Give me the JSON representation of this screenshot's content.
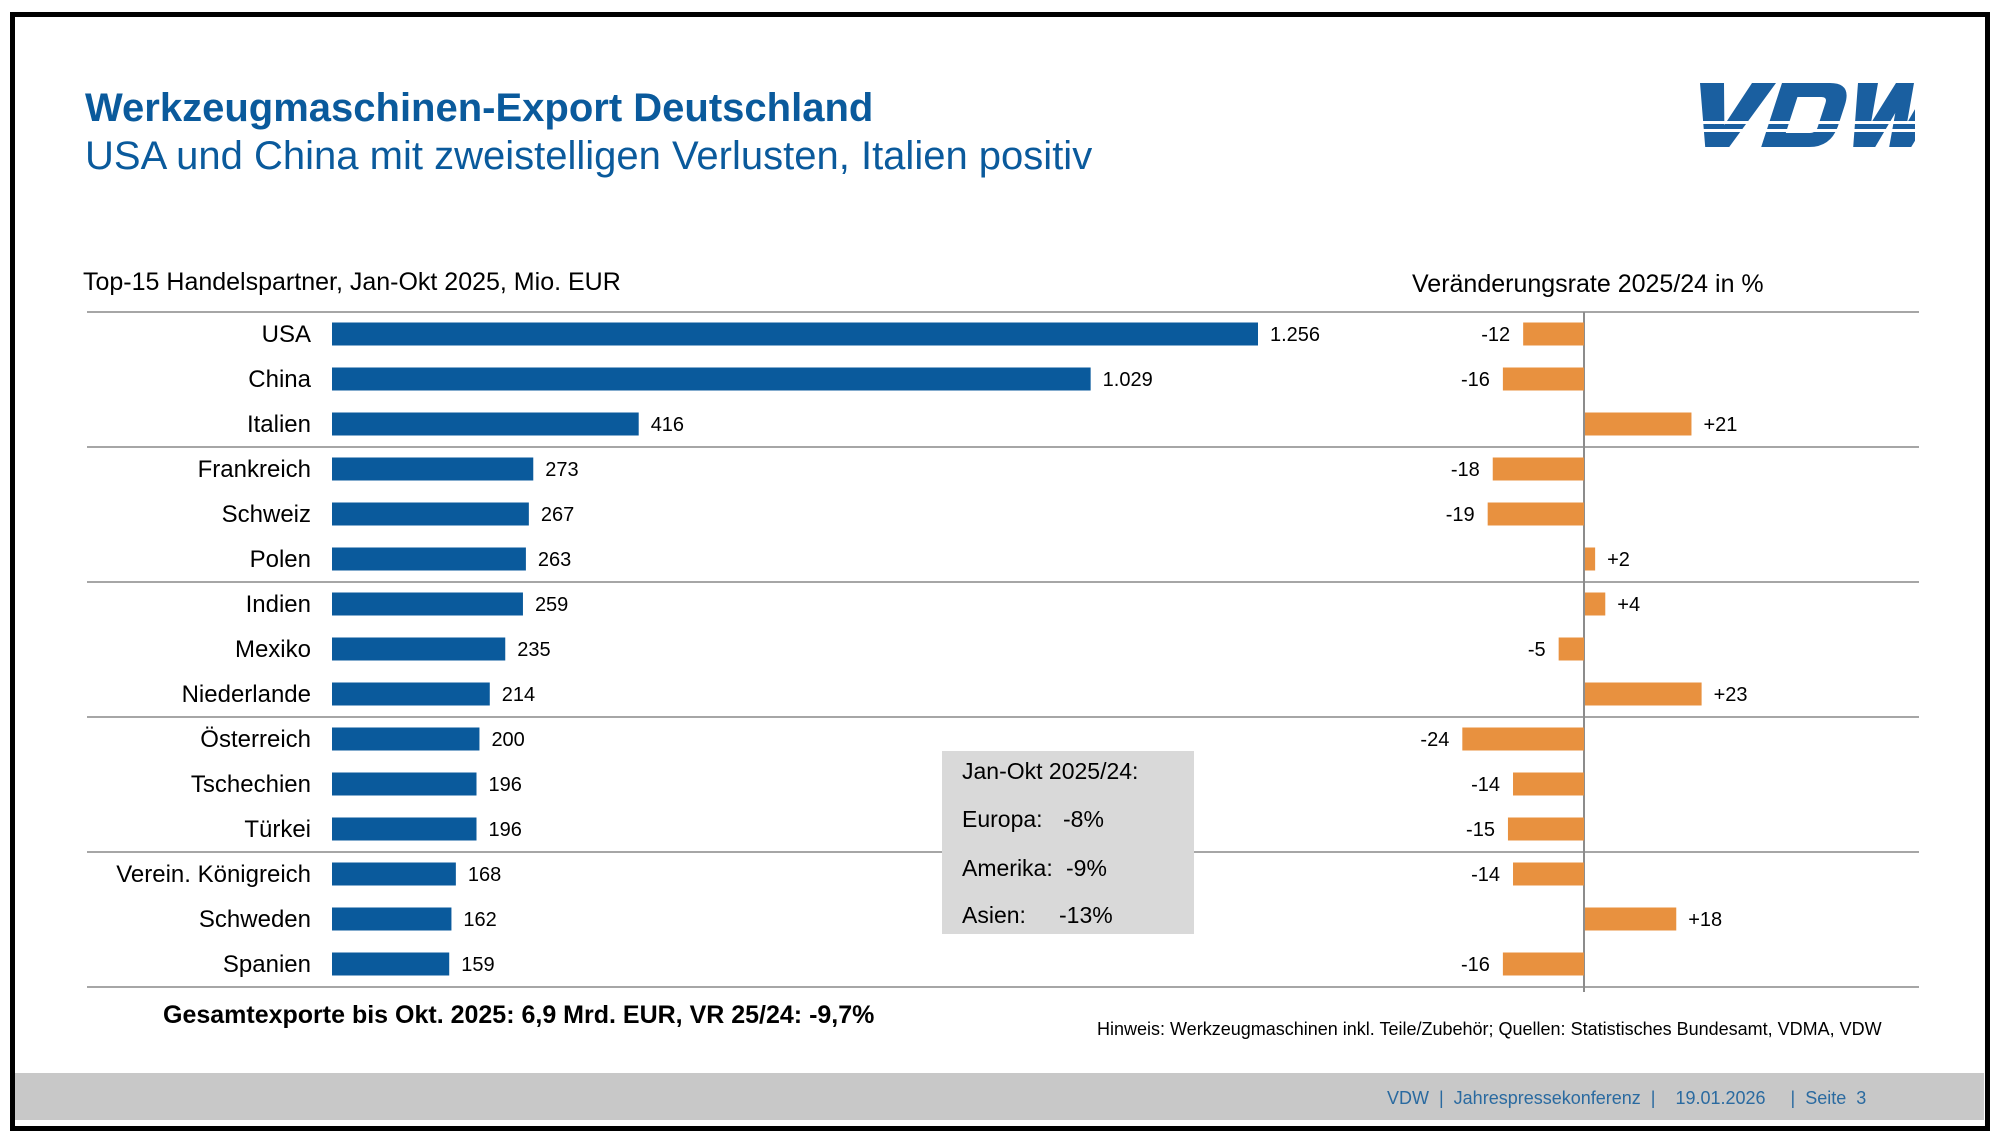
{
  "slide": {
    "title": "Werkzeugmaschinen-Export Deutschland",
    "subtitle": "USA und China mit zweistelligen Verlusten, Italien positiv",
    "logo_text": "VDW",
    "left_caption": "Top-15 Handelspartner, Jan-Okt 2025, Mio. EUR",
    "right_caption": "Veränderungsrate 2025/24 in %",
    "total": "Gesamtexporte bis Okt. 2025: 6,9 Mrd. EUR, VR 25/24: -9,7%",
    "note": "Hinweis: Werkzeugmaschinen inkl. Teile/Zubehör; Quellen: Statistisches Bundesamt, VDMA, VDW",
    "footer": "VDW  |  Jahrespressekonferenz  |    19.01.2026     |  Seite  3"
  },
  "info_box": {
    "heading": "Jan-Okt 2025/24:",
    "rows": [
      {
        "label": "Europa:",
        "value": "-8%"
      },
      {
        "label": "Amerika:",
        "value": "-9%"
      },
      {
        "label": "Asien:",
        "value": "-13%"
      }
    ]
  },
  "colors": {
    "title": "#0a5a9c",
    "export_bar": "#0a5a9c",
    "change_bar": "#e8913f",
    "info_box": "#d9d9d9",
    "footer_band": "#c8c8c8",
    "footer_text": "#2a6aa0",
    "separator": "#a6a6a6"
  },
  "chart_data": [
    {
      "type": "bar",
      "orientation": "horizontal",
      "title": "Top-15 Handelspartner, Jan-Okt 2025, Mio. EUR",
      "xlabel": "",
      "ylabel": "",
      "grid": false,
      "group_size": 3,
      "categories": [
        "USA",
        "China",
        "Italien",
        "Frankreich",
        "Schweiz",
        "Polen",
        "Indien",
        "Mexiko",
        "Niederlande",
        "Österreich",
        "Tschechien",
        "Türkei",
        "Verein. Königreich",
        "Schweden",
        "Spanien"
      ],
      "values": [
        1256,
        1029,
        416,
        273,
        267,
        263,
        259,
        235,
        214,
        200,
        196,
        196,
        168,
        162,
        159
      ],
      "value_labels": [
        "1.256",
        "1.029",
        "416",
        "273",
        "267",
        "263",
        "259",
        "235",
        "214",
        "200",
        "196",
        "196",
        "168",
        "162",
        "159"
      ],
      "xlim": [
        0,
        1256
      ]
    },
    {
      "type": "bar",
      "orientation": "horizontal",
      "title": "Veränderungsrate 2025/24 in %",
      "xlabel": "",
      "ylabel": "",
      "grid": false,
      "categories": [
        "USA",
        "China",
        "Italien",
        "Frankreich",
        "Schweiz",
        "Polen",
        "Indien",
        "Mexiko",
        "Niederlande",
        "Österreich",
        "Tschechien",
        "Türkei",
        "Verein. Königreich",
        "Schweden",
        "Spanien"
      ],
      "values": [
        -12,
        -16,
        21,
        -18,
        -19,
        2,
        4,
        -5,
        23,
        -24,
        -14,
        -15,
        -14,
        18,
        -16
      ],
      "value_labels": [
        "-12",
        "-16",
        "+21",
        "-18",
        "-19",
        "+2",
        "+4",
        "-5",
        "+23",
        "-24",
        "-14",
        "-15",
        "-14",
        "+18",
        "-16"
      ],
      "xlim": [
        -26,
        66
      ]
    }
  ]
}
